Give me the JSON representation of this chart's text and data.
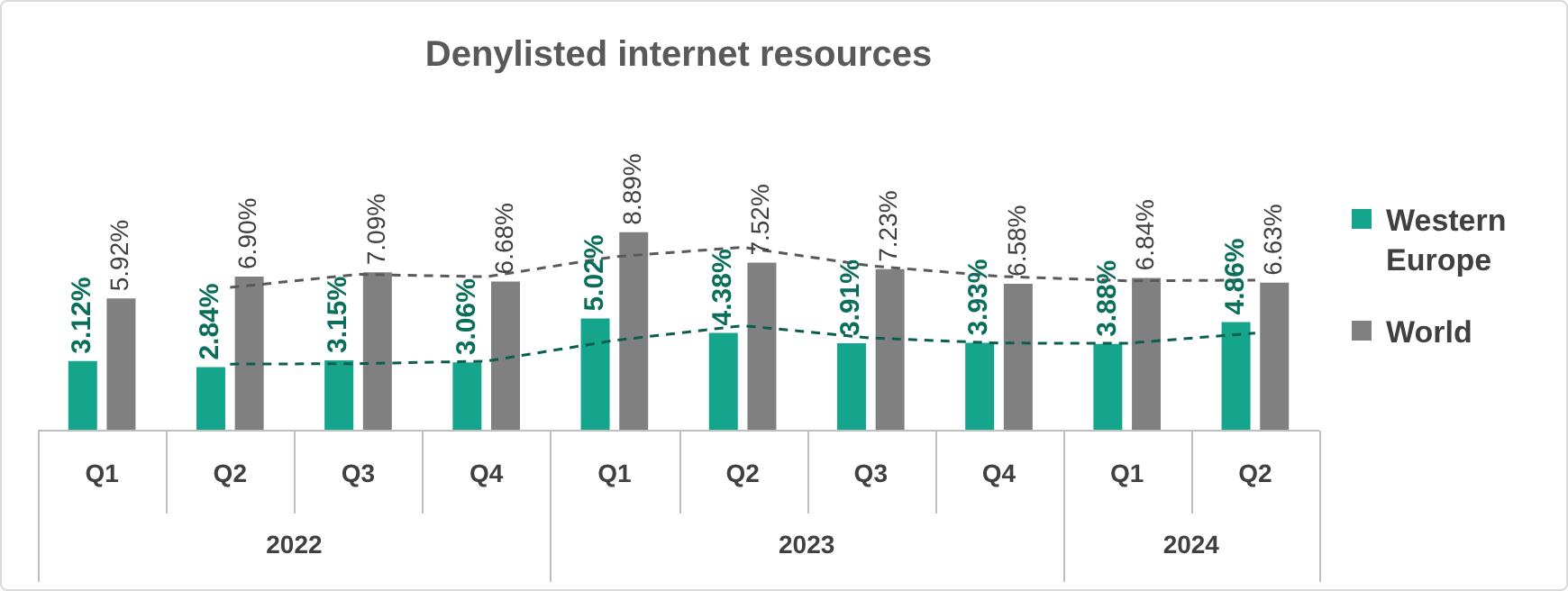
{
  "chart_data": {
    "type": "bar",
    "title": "Denylisted internet resources",
    "categories": [
      "Q1",
      "Q2",
      "Q3",
      "Q4",
      "Q1",
      "Q2",
      "Q3",
      "Q4",
      "Q1",
      "Q2"
    ],
    "series": [
      {
        "name": "Western Europe",
        "color": "#14a58c",
        "values": [
          3.12,
          2.84,
          3.15,
          3.06,
          5.02,
          4.38,
          3.91,
          3.93,
          3.88,
          4.86
        ],
        "value_labels": [
          "3.12%",
          "2.84%",
          "3.15%",
          "3.06%",
          "5.02%",
          "4.38%",
          "3.91%",
          "3.93%",
          "3.88%",
          "4.86%"
        ]
      },
      {
        "name": "World",
        "color": "#808080",
        "values": [
          5.92,
          6.9,
          7.09,
          6.68,
          8.89,
          7.52,
          7.23,
          6.58,
          6.84,
          6.63
        ],
        "value_labels": [
          "5.92%",
          "6.90%",
          "7.09%",
          "6.68%",
          "8.89%",
          "7.52%",
          "7.23%",
          "6.58%",
          "6.84%",
          "6.63%"
        ]
      },
      {
        "type": "line",
        "color": "#0b5e4e",
        "line_style": "dashed",
        "marker": "none",
        "values": [
          null,
          2.98,
          3.0,
          3.11,
          4.04,
          4.7,
          4.15,
          3.92,
          3.91,
          4.37
        ]
      },
      {
        "type": "line",
        "color": "#595959",
        "line_style": "dashed",
        "marker": "none",
        "values": [
          null,
          6.41,
          7.0,
          6.89,
          7.79,
          8.21,
          7.38,
          6.91,
          6.71,
          6.74
        ]
      }
    ],
    "annotations": [
      "2022",
      "2023",
      "2024"
    ],
    "legend": "right",
    "grid": false
  }
}
